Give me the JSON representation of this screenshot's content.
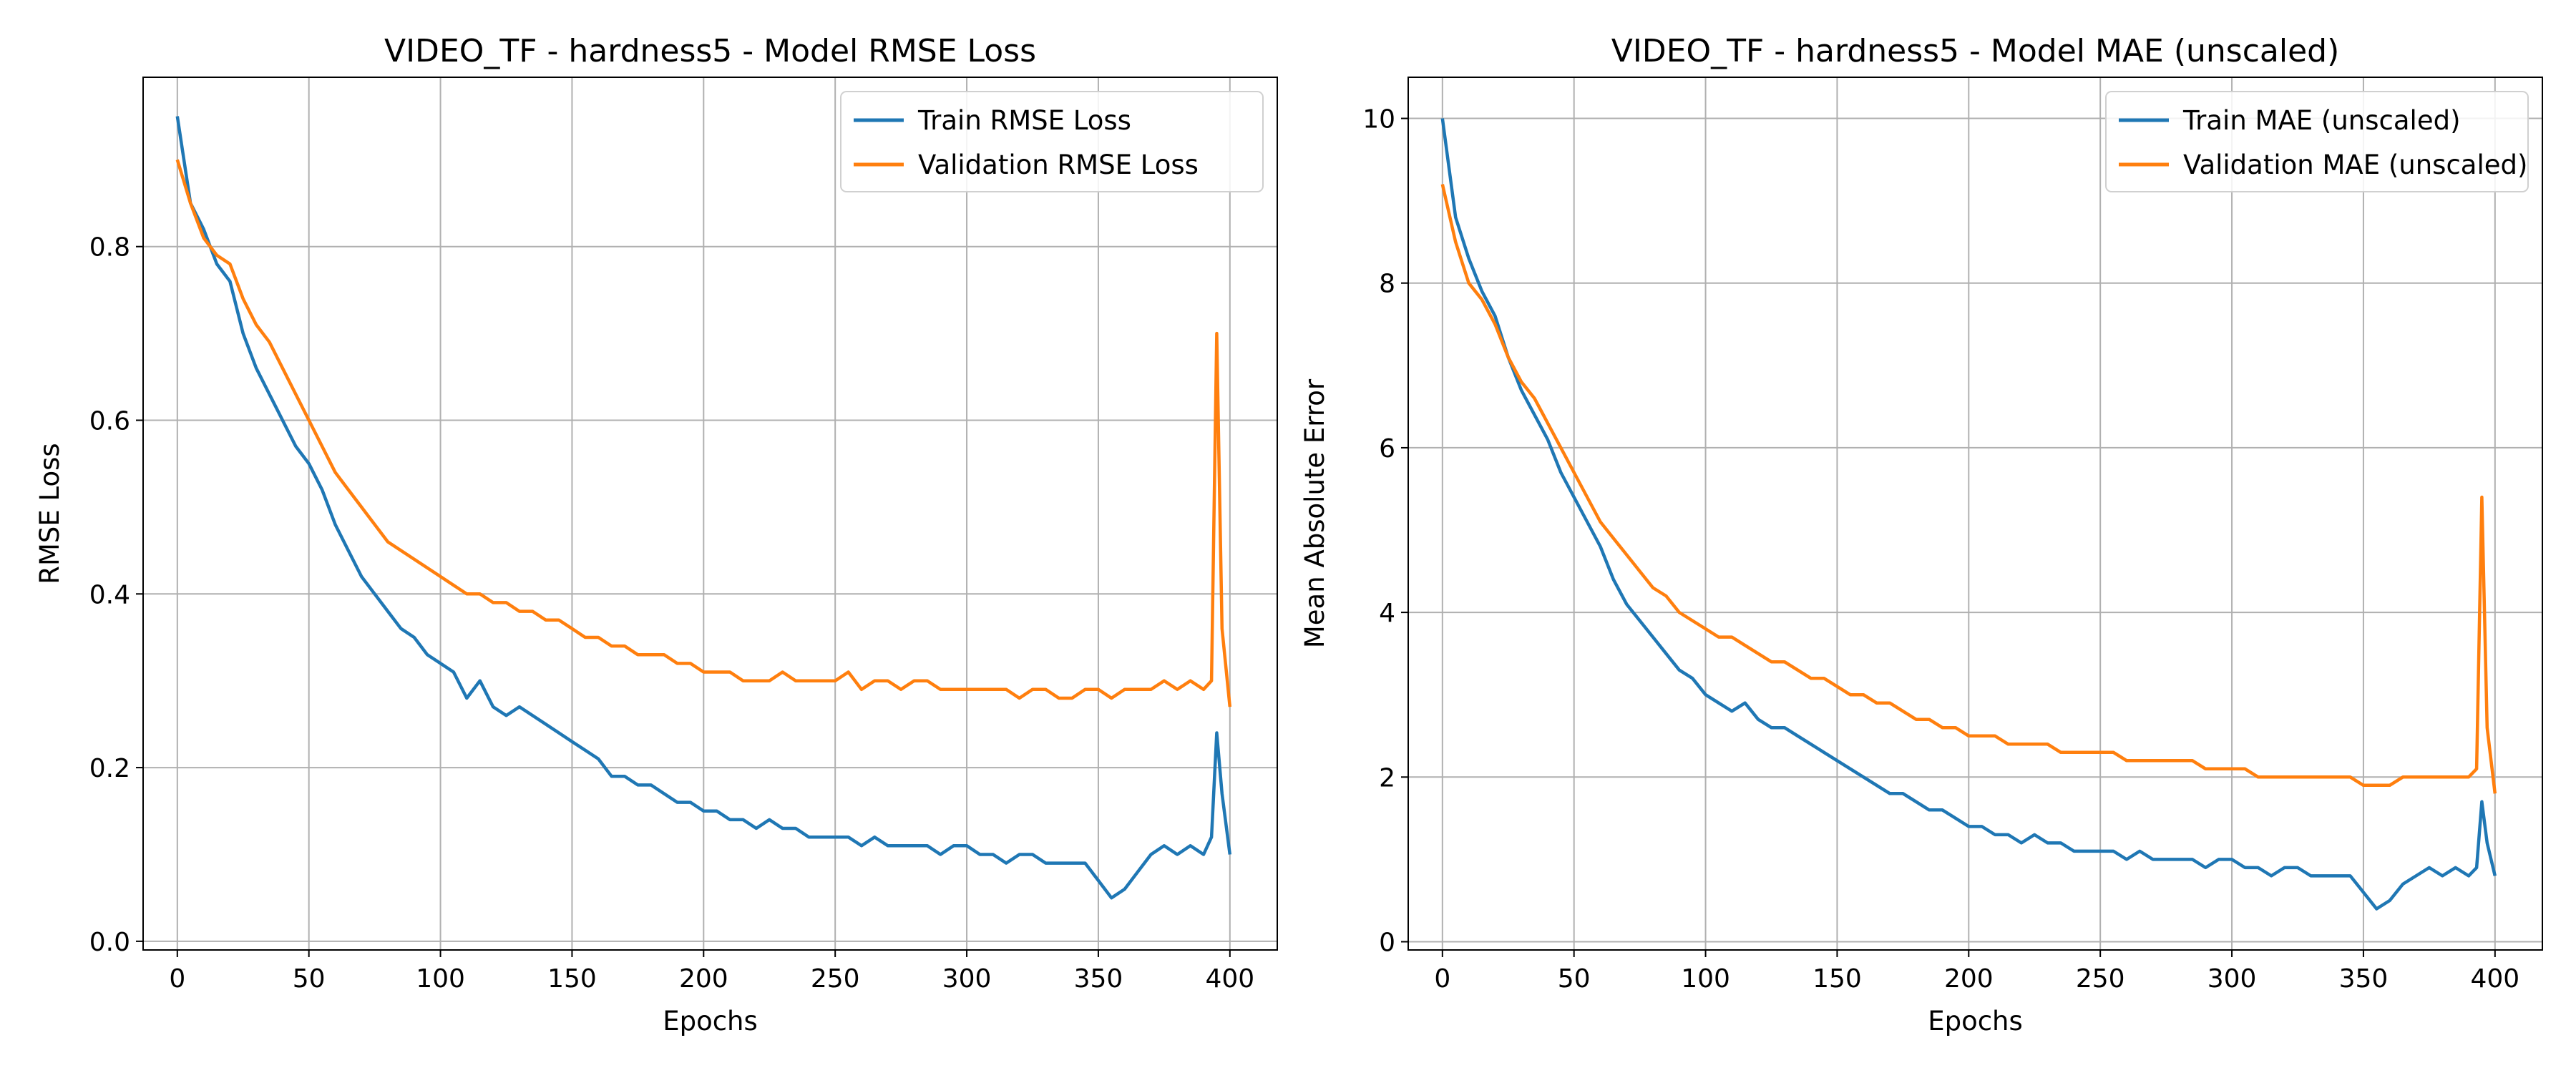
{
  "chart_data": [
    {
      "type": "line",
      "title": "VIDEO_TF - hardness5 - Model RMSE Loss",
      "xlabel": "Epochs",
      "ylabel": "RMSE Loss",
      "xlim": [
        -13,
        418
      ],
      "ylim": [
        -0.01,
        0.995
      ],
      "xticks": [
        0,
        50,
        100,
        150,
        200,
        250,
        300,
        350,
        400
      ],
      "yticks": [
        0.0,
        0.2,
        0.4,
        0.6,
        0.8
      ],
      "ytick_labels": [
        "0.0",
        "0.2",
        "0.4",
        "0.6",
        "0.8"
      ],
      "grid": true,
      "legend_position": "top-right",
      "series": [
        {
          "name": "Train RMSE Loss",
          "color": "#1f77b4",
          "x": [
            0,
            5,
            10,
            15,
            20,
            25,
            30,
            35,
            40,
            45,
            50,
            55,
            60,
            65,
            70,
            75,
            80,
            85,
            90,
            95,
            100,
            105,
            110,
            115,
            120,
            125,
            130,
            135,
            140,
            145,
            150,
            155,
            160,
            165,
            170,
            175,
            180,
            185,
            190,
            195,
            200,
            205,
            210,
            215,
            220,
            225,
            230,
            235,
            240,
            245,
            250,
            255,
            260,
            265,
            270,
            275,
            280,
            285,
            290,
            295,
            300,
            305,
            310,
            315,
            320,
            325,
            330,
            335,
            340,
            345,
            350,
            355,
            360,
            365,
            370,
            375,
            380,
            385,
            390,
            393,
            395,
            397,
            400
          ],
          "y": [
            0.95,
            0.85,
            0.82,
            0.78,
            0.76,
            0.7,
            0.66,
            0.63,
            0.6,
            0.57,
            0.55,
            0.52,
            0.48,
            0.45,
            0.42,
            0.4,
            0.38,
            0.36,
            0.35,
            0.33,
            0.32,
            0.31,
            0.28,
            0.3,
            0.27,
            0.26,
            0.27,
            0.26,
            0.25,
            0.24,
            0.23,
            0.22,
            0.21,
            0.19,
            0.19,
            0.18,
            0.18,
            0.17,
            0.16,
            0.16,
            0.15,
            0.15,
            0.14,
            0.14,
            0.13,
            0.14,
            0.13,
            0.13,
            0.12,
            0.12,
            0.12,
            0.12,
            0.11,
            0.12,
            0.11,
            0.11,
            0.11,
            0.11,
            0.1,
            0.11,
            0.11,
            0.1,
            0.1,
            0.09,
            0.1,
            0.1,
            0.09,
            0.09,
            0.09,
            0.09,
            0.07,
            0.05,
            0.06,
            0.08,
            0.1,
            0.11,
            0.1,
            0.11,
            0.1,
            0.12,
            0.24,
            0.17,
            0.1
          ]
        },
        {
          "name": "Validation RMSE Loss",
          "color": "#ff7f0e",
          "x": [
            0,
            5,
            10,
            15,
            20,
            25,
            30,
            35,
            40,
            45,
            50,
            55,
            60,
            65,
            70,
            75,
            80,
            85,
            90,
            95,
            100,
            105,
            110,
            115,
            120,
            125,
            130,
            135,
            140,
            145,
            150,
            155,
            160,
            165,
            170,
            175,
            180,
            185,
            190,
            195,
            200,
            205,
            210,
            215,
            220,
            225,
            230,
            235,
            240,
            245,
            250,
            255,
            260,
            265,
            270,
            275,
            280,
            285,
            290,
            295,
            300,
            305,
            310,
            315,
            320,
            325,
            330,
            335,
            340,
            345,
            350,
            355,
            360,
            365,
            370,
            375,
            380,
            385,
            390,
            393,
            395,
            397,
            400
          ],
          "y": [
            0.9,
            0.85,
            0.81,
            0.79,
            0.78,
            0.74,
            0.71,
            0.69,
            0.66,
            0.63,
            0.6,
            0.57,
            0.54,
            0.52,
            0.5,
            0.48,
            0.46,
            0.45,
            0.44,
            0.43,
            0.42,
            0.41,
            0.4,
            0.4,
            0.39,
            0.39,
            0.38,
            0.38,
            0.37,
            0.37,
            0.36,
            0.35,
            0.35,
            0.34,
            0.34,
            0.33,
            0.33,
            0.33,
            0.32,
            0.32,
            0.31,
            0.31,
            0.31,
            0.3,
            0.3,
            0.3,
            0.31,
            0.3,
            0.3,
            0.3,
            0.3,
            0.31,
            0.29,
            0.3,
            0.3,
            0.29,
            0.3,
            0.3,
            0.29,
            0.29,
            0.29,
            0.29,
            0.29,
            0.29,
            0.28,
            0.29,
            0.29,
            0.28,
            0.28,
            0.29,
            0.29,
            0.28,
            0.29,
            0.29,
            0.29,
            0.3,
            0.29,
            0.3,
            0.29,
            0.3,
            0.7,
            0.36,
            0.27
          ]
        }
      ]
    },
    {
      "type": "line",
      "title": "VIDEO_TF - hardness5 - Model MAE (unscaled)",
      "xlabel": "Epochs",
      "ylabel": "Mean Absolute Error",
      "xlim": [
        -13,
        418
      ],
      "ylim": [
        -0.1,
        10.5
      ],
      "xticks": [
        0,
        50,
        100,
        150,
        200,
        250,
        300,
        350,
        400
      ],
      "yticks": [
        0,
        2,
        4,
        6,
        8,
        10
      ],
      "ytick_labels": [
        "0",
        "2",
        "4",
        "6",
        "8",
        "10"
      ],
      "grid": true,
      "legend_position": "top-right",
      "series": [
        {
          "name": "Train MAE (unscaled)",
          "color": "#1f77b4",
          "x": [
            0,
            5,
            10,
            15,
            20,
            25,
            30,
            35,
            40,
            45,
            50,
            55,
            60,
            65,
            70,
            75,
            80,
            85,
            90,
            95,
            100,
            105,
            110,
            115,
            120,
            125,
            130,
            135,
            140,
            145,
            150,
            155,
            160,
            165,
            170,
            175,
            180,
            185,
            190,
            195,
            200,
            205,
            210,
            215,
            220,
            225,
            230,
            235,
            240,
            245,
            250,
            255,
            260,
            265,
            270,
            275,
            280,
            285,
            290,
            295,
            300,
            305,
            310,
            315,
            320,
            325,
            330,
            335,
            340,
            345,
            350,
            355,
            360,
            365,
            370,
            375,
            380,
            385,
            390,
            393,
            395,
            397,
            400
          ],
          "y": [
            10.0,
            8.8,
            8.3,
            7.9,
            7.6,
            7.1,
            6.7,
            6.4,
            6.1,
            5.7,
            5.4,
            5.1,
            4.8,
            4.4,
            4.1,
            3.9,
            3.7,
            3.5,
            3.3,
            3.2,
            3.0,
            2.9,
            2.8,
            2.9,
            2.7,
            2.6,
            2.6,
            2.5,
            2.4,
            2.3,
            2.2,
            2.1,
            2.0,
            1.9,
            1.8,
            1.8,
            1.7,
            1.6,
            1.6,
            1.5,
            1.4,
            1.4,
            1.3,
            1.3,
            1.2,
            1.3,
            1.2,
            1.2,
            1.1,
            1.1,
            1.1,
            1.1,
            1.0,
            1.1,
            1.0,
            1.0,
            1.0,
            1.0,
            0.9,
            1.0,
            1.0,
            0.9,
            0.9,
            0.8,
            0.9,
            0.9,
            0.8,
            0.8,
            0.8,
            0.8,
            0.6,
            0.4,
            0.5,
            0.7,
            0.8,
            0.9,
            0.8,
            0.9,
            0.8,
            0.9,
            1.7,
            1.2,
            0.8
          ]
        },
        {
          "name": "Validation MAE (unscaled)",
          "color": "#ff7f0e",
          "x": [
            0,
            5,
            10,
            15,
            20,
            25,
            30,
            35,
            40,
            45,
            50,
            55,
            60,
            65,
            70,
            75,
            80,
            85,
            90,
            95,
            100,
            105,
            110,
            115,
            120,
            125,
            130,
            135,
            140,
            145,
            150,
            155,
            160,
            165,
            170,
            175,
            180,
            185,
            190,
            195,
            200,
            205,
            210,
            215,
            220,
            225,
            230,
            235,
            240,
            245,
            250,
            255,
            260,
            265,
            270,
            275,
            280,
            285,
            290,
            295,
            300,
            305,
            310,
            315,
            320,
            325,
            330,
            335,
            340,
            345,
            350,
            355,
            360,
            365,
            370,
            375,
            380,
            385,
            390,
            393,
            395,
            397,
            400
          ],
          "y": [
            9.2,
            8.5,
            8.0,
            7.8,
            7.5,
            7.1,
            6.8,
            6.6,
            6.3,
            6.0,
            5.7,
            5.4,
            5.1,
            4.9,
            4.7,
            4.5,
            4.3,
            4.2,
            4.0,
            3.9,
            3.8,
            3.7,
            3.7,
            3.6,
            3.5,
            3.4,
            3.4,
            3.3,
            3.2,
            3.2,
            3.1,
            3.0,
            3.0,
            2.9,
            2.9,
            2.8,
            2.7,
            2.7,
            2.6,
            2.6,
            2.5,
            2.5,
            2.5,
            2.4,
            2.4,
            2.4,
            2.4,
            2.3,
            2.3,
            2.3,
            2.3,
            2.3,
            2.2,
            2.2,
            2.2,
            2.2,
            2.2,
            2.2,
            2.1,
            2.1,
            2.1,
            2.1,
            2.0,
            2.0,
            2.0,
            2.0,
            2.0,
            2.0,
            2.0,
            2.0,
            1.9,
            1.9,
            1.9,
            2.0,
            2.0,
            2.0,
            2.0,
            2.0,
            2.0,
            2.1,
            5.4,
            2.6,
            1.8
          ]
        }
      ]
    }
  ]
}
